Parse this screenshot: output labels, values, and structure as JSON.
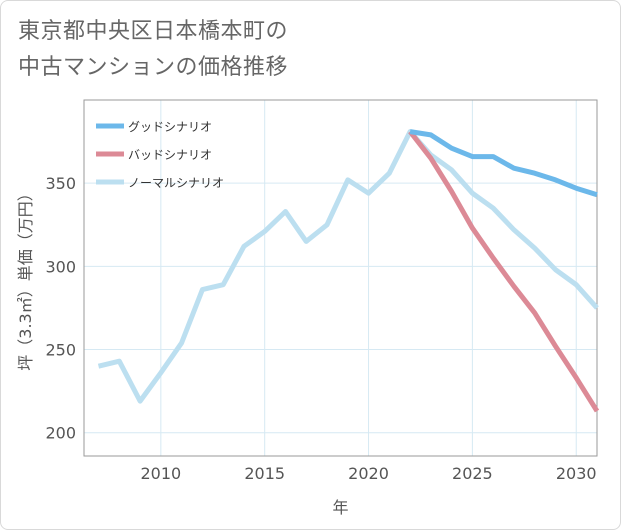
{
  "title": {
    "line1": "東京都中央区日本橋本町の",
    "line2": "中古マンションの価格推移"
  },
  "chart_data": {
    "type": "line",
    "title": "東京都中央区日本橋本町の中古マンションの価格推移",
    "xlabel": "年",
    "ylabel": "坪（3.3㎡）単価（万円）",
    "xlim": [
      2006.3,
      2031
    ],
    "ylim": [
      186,
      400
    ],
    "xticks": [
      2010,
      2015,
      2020,
      2025,
      2030
    ],
    "yticks": [
      200,
      250,
      300,
      350
    ],
    "grid": true,
    "legend_position": "top-left",
    "series": [
      {
        "name": "グッドシナリオ",
        "color": "#6cb8ea",
        "x": [
          2022,
          2023,
          2024,
          2025,
          2026,
          2027,
          2028,
          2029,
          2030,
          2031
        ],
        "values": [
          381,
          379,
          371,
          366,
          366,
          359,
          356,
          352,
          347,
          343
        ]
      },
      {
        "name": "バッドシナリオ",
        "color": "#dc8a96",
        "x": [
          2022,
          2023,
          2024,
          2025,
          2026,
          2027,
          2028,
          2029,
          2030,
          2031
        ],
        "values": [
          381,
          365,
          345,
          323,
          305,
          288,
          272,
          252,
          233,
          213
        ]
      },
      {
        "name": "ノーマルシナリオ",
        "color": "#bcdff0",
        "x": [
          2007,
          2008,
          2009,
          2010,
          2011,
          2012,
          2013,
          2014,
          2015,
          2016,
          2017,
          2018,
          2019,
          2020,
          2021,
          2022,
          2023,
          2024,
          2025,
          2026,
          2027,
          2028,
          2029,
          2030,
          2031
        ],
        "values": [
          240,
          243,
          219,
          236,
          254,
          286,
          289,
          312,
          321,
          333,
          315,
          325,
          352,
          344,
          356,
          381,
          367,
          358,
          344,
          335,
          322,
          311,
          298,
          289,
          275
        ]
      }
    ]
  }
}
